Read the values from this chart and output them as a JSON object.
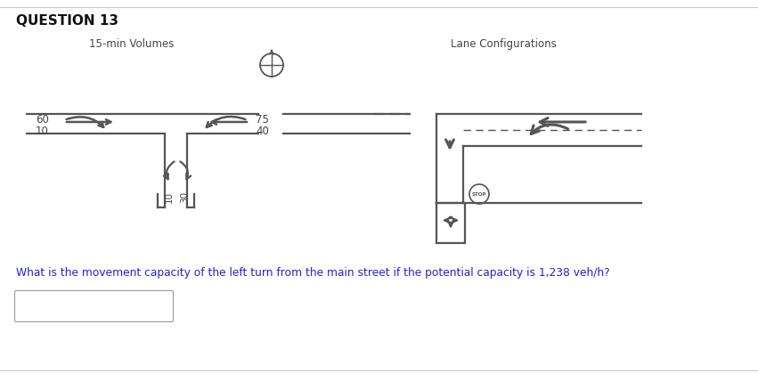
{
  "title": "QUESTION 13",
  "subtitle_left": "15-min Volumes",
  "subtitle_right": "Lane Configurations",
  "vol_60": "60",
  "vol_10": "10",
  "vol_75": "75",
  "vol_40": "40",
  "vol_minor_left": "10",
  "vol_minor_right": "30",
  "question_text": "What is the movement capacity of the left turn from the main street if the potential capacity is 1,238 veh/h?",
  "bg_color": "#ffffff",
  "line_color": "#555555",
  "text_color": "#444444",
  "arrow_color": "#555555",
  "fig_width": 8.51,
  "fig_height": 4.28
}
